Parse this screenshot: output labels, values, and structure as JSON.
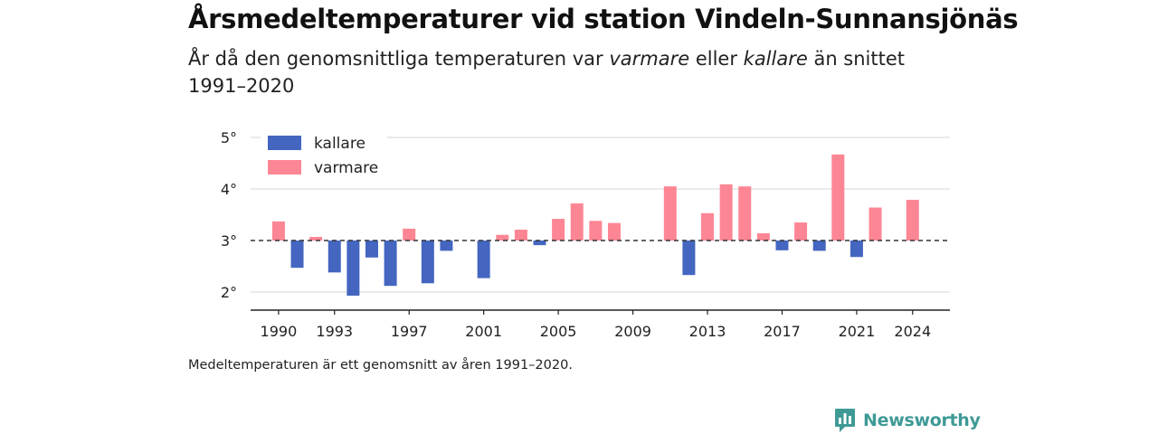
{
  "header": {
    "title": "Årsmedeltemperaturer vid station Vindeln-Sunnansjönäs",
    "subtitle_parts": [
      "År då den genomsnittliga temperaturen var ",
      "varmare",
      " eller ",
      "kallare",
      " än snittet 1991–2020"
    ]
  },
  "footnote": "Medeltemperaturen är ett genomsnitt av åren 1991–2020.",
  "brand": {
    "name": "Newsworthy",
    "icon": "newsworthy-logo-icon"
  },
  "colors": {
    "kallare": "#4466c0",
    "varmare": "#fd8694",
    "reference_line": "#333333",
    "grid": "#dddddd"
  },
  "chart_data": {
    "type": "bar",
    "baseline": 3.0,
    "baseline_style": "dashed",
    "x_ticks": [
      1990,
      1993,
      1997,
      2001,
      2005,
      2009,
      2013,
      2017,
      2021,
      2024
    ],
    "y_ticks": [
      2,
      3,
      4,
      5
    ],
    "y_tick_labels": [
      "2°",
      "3°",
      "4°",
      "5°"
    ],
    "ylim": [
      1.6,
      5.1
    ],
    "xlim": [
      1988.5,
      2026
    ],
    "grid": true,
    "legend": {
      "placement": "top-left",
      "items": [
        {
          "key": "kallare",
          "label": "kallare"
        },
        {
          "key": "varmare",
          "label": "varmare"
        }
      ]
    },
    "series": [
      {
        "name": "kallare",
        "values": [
          {
            "x": 1991,
            "y": 2.47
          },
          {
            "x": 1993,
            "y": 2.38
          },
          {
            "x": 1994,
            "y": 1.93
          },
          {
            "x": 1995,
            "y": 2.67
          },
          {
            "x": 1996,
            "y": 2.12
          },
          {
            "x": 1998,
            "y": 2.17
          },
          {
            "x": 1999,
            "y": 2.8
          },
          {
            "x": 2001,
            "y": 2.27
          },
          {
            "x": 2004,
            "y": 2.91
          },
          {
            "x": 2012,
            "y": 2.33
          },
          {
            "x": 2017,
            "y": 2.81
          },
          {
            "x": 2019,
            "y": 2.8
          },
          {
            "x": 2021,
            "y": 2.68
          }
        ]
      },
      {
        "name": "varmare",
        "values": [
          {
            "x": 1990,
            "y": 3.37
          },
          {
            "x": 1992,
            "y": 3.07
          },
          {
            "x": 1997,
            "y": 3.23
          },
          {
            "x": 2002,
            "y": 3.11
          },
          {
            "x": 2003,
            "y": 3.21
          },
          {
            "x": 2005,
            "y": 3.42
          },
          {
            "x": 2006,
            "y": 3.72
          },
          {
            "x": 2007,
            "y": 3.38
          },
          {
            "x": 2008,
            "y": 3.34
          },
          {
            "x": 2011,
            "y": 4.05
          },
          {
            "x": 2013,
            "y": 3.53
          },
          {
            "x": 2014,
            "y": 4.09
          },
          {
            "x": 2015,
            "y": 4.05
          },
          {
            "x": 2016,
            "y": 3.14
          },
          {
            "x": 2018,
            "y": 3.35
          },
          {
            "x": 2020,
            "y": 4.67
          },
          {
            "x": 2022,
            "y": 3.64
          },
          {
            "x": 2024,
            "y": 3.79
          }
        ]
      }
    ]
  }
}
